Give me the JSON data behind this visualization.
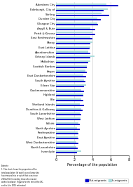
{
  "title": "",
  "xlabel": "Percentage of the population",
  "categories": [
    "Aberdeen City",
    "Edinburgh, City of",
    "Stirling",
    "Dundee City",
    "Glasgow City",
    "Argyll & Bute",
    "Perth & Kinross",
    "East Renfrewshire",
    "Moray",
    "East Lothian",
    "Aberdeenshire",
    "Orkney Islands",
    "Midlothian",
    "Scottish Borders",
    "Angus",
    "East Dunbartonshire",
    "South Ayrshire",
    "Eilean Siar",
    "Clackmannanshire",
    "Highland",
    "Fife",
    "Shetland Islands",
    "Dumfries & Galloway",
    "South Lanarkshire",
    "West Lothian",
    "Falkirk",
    "North Ayrshire",
    "Renfrewshire",
    "East Ayrshire",
    "West Dunbartonshire",
    "North Lanarkshire",
    "Inverclyde"
  ],
  "out_migrants": [
    6.8,
    5.2,
    5.8,
    4.9,
    4.6,
    4.3,
    4.3,
    4.0,
    3.8,
    3.7,
    3.8,
    3.8,
    3.5,
    3.4,
    3.4,
    3.3,
    3.2,
    3.1,
    3.1,
    3.0,
    3.0,
    3.1,
    2.9,
    2.8,
    2.7,
    2.6,
    2.6,
    2.5,
    2.5,
    2.5,
    2.4,
    2.3
  ],
  "in_migrants": [
    5.5,
    5.7,
    5.0,
    4.5,
    4.5,
    3.8,
    4.0,
    3.8,
    4.0,
    3.8,
    3.5,
    4.2,
    3.8,
    3.4,
    3.2,
    3.0,
    3.1,
    3.3,
    2.8,
    3.0,
    2.8,
    2.6,
    2.8,
    2.6,
    2.7,
    2.5,
    2.3,
    2.4,
    2.4,
    2.2,
    2.2,
    2.8
  ],
  "out_color": "#0000CC",
  "in_color": "#AADDDD",
  "xlim": [
    0,
    8
  ],
  "xticks": [
    0,
    2,
    4,
    6,
    8
  ],
  "footnote": "Footnote\n1. This chart shows the proportion of the\ntotal population (of each) council area who\nhave moved into or out of that area since\n2001-2011 (including those who moved\nwithin Scotland). (Figures for the rest of the UK,\nand to & to 2001 estimates)",
  "legend_out": "Out-migrants",
  "legend_in": "In-migrants"
}
